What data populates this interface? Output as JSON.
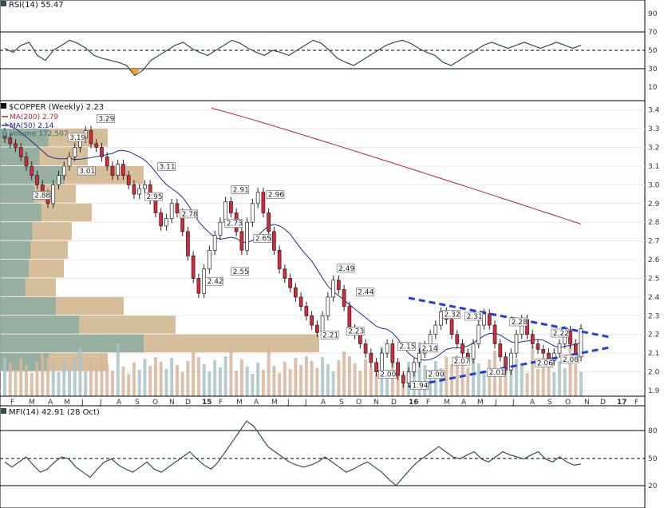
{
  "rsi": {
    "title": "RSI(14) 55.47",
    "levels": [
      "90",
      "70",
      "50",
      "30",
      "10"
    ],
    "color": "#2f4f4f"
  },
  "price": {
    "title": "$COPPER (Weekly) 2.23",
    "ma200": {
      "label": "MA(200) 2.79",
      "color": "#b22234"
    },
    "ma50": {
      "label": "MA(50) 2.14",
      "color": "#1f2a8c"
    },
    "volume": {
      "label": "Volume 172,507",
      "color": "#5f9ea0"
    },
    "yticks": [
      "3.4",
      "3.3",
      "3.2",
      "3.1",
      "3.0",
      "2.9",
      "2.8",
      "2.7",
      "2.6",
      "2.5",
      "2.4",
      "2.3",
      "2.2",
      "2.1",
      "2.0",
      "1.9"
    ],
    "annotations": [
      "3.29",
      "3.19",
      "3.11",
      "3.01",
      "2.88",
      "2.95",
      "2.78",
      "2.91",
      "2.96",
      "2.73",
      "2.65",
      "2.55",
      "2.42",
      "2.49",
      "2.44",
      "2.21",
      "2.23",
      "2.15",
      "2.14",
      "2.00",
      "1.94",
      "2.00",
      "2.32",
      "2.31",
      "2.07",
      "2.28",
      "2.01",
      "2.22",
      "2.06",
      "2.08"
    ]
  },
  "xaxis": [
    "F",
    "M",
    "A",
    "M",
    "J",
    "J",
    "A",
    "S",
    "O",
    "N",
    "D",
    "15",
    "F",
    "M",
    "A",
    "M",
    "J",
    "J",
    "A",
    "S",
    "O",
    "N",
    "D",
    "16",
    "F",
    "M",
    "A",
    "M",
    "J",
    "J",
    "A",
    "S",
    "O",
    "N",
    "D",
    "17",
    "F"
  ],
  "mfi": {
    "title": "MFI(14) 42.91 (28 Oct)",
    "levels": [
      "80",
      "50",
      "20"
    ]
  },
  "chart_data": [
    {
      "type": "line",
      "title": "RSI(14) 55.47",
      "ylim": [
        0,
        100
      ],
      "yticks": [
        90,
        70,
        50,
        30,
        10
      ],
      "series": [
        {
          "name": "RSI(14)",
          "values": [
            52,
            48,
            55,
            58,
            45,
            40,
            50,
            55,
            60,
            57,
            52,
            45,
            42,
            40,
            38,
            35,
            25,
            30,
            40,
            45,
            50,
            55,
            58,
            52,
            48,
            45,
            50,
            55,
            60,
            57,
            52,
            48,
            45,
            50,
            48,
            45,
            50,
            55,
            60,
            57,
            50,
            42,
            38,
            35,
            40,
            45,
            50,
            55,
            58,
            60,
            57,
            52,
            48,
            45,
            38,
            35,
            40,
            45,
            50,
            55,
            58,
            55,
            52,
            55,
            58,
            55,
            52,
            55,
            58,
            55,
            52,
            55
          ]
        }
      ]
    },
    {
      "type": "candlestick",
      "title": "$COPPER (Weekly) 2.23",
      "ylim": [
        1.9,
        3.45
      ],
      "yticks": [
        3.4,
        3.3,
        3.2,
        3.1,
        3.0,
        2.9,
        2.8,
        2.7,
        2.6,
        2.5,
        2.4,
        2.3,
        2.2,
        2.1,
        2.0,
        1.9
      ],
      "close": [
        3.25,
        3.22,
        3.2,
        3.15,
        3.1,
        3.05,
        3.0,
        2.95,
        2.9,
        3.0,
        3.05,
        3.1,
        3.15,
        3.2,
        3.25,
        3.29,
        3.22,
        3.2,
        3.15,
        3.1,
        3.05,
        3.11,
        3.05,
        3.0,
        2.95,
        2.98,
        3.0,
        2.92,
        2.85,
        2.78,
        2.82,
        2.9,
        2.85,
        2.75,
        2.62,
        2.5,
        2.42,
        2.55,
        2.65,
        2.73,
        2.8,
        2.91,
        2.85,
        2.75,
        2.65,
        2.8,
        2.9,
        2.96,
        2.85,
        2.75,
        2.65,
        2.55,
        2.5,
        2.45,
        2.4,
        2.35,
        2.3,
        2.25,
        2.21,
        2.3,
        2.4,
        2.49,
        2.44,
        2.35,
        2.23,
        2.2,
        2.15,
        2.1,
        2.05,
        2.0,
        2.1,
        2.15,
        2.05,
        1.98,
        1.94,
        2.0,
        2.05,
        2.1,
        2.14,
        2.2,
        2.25,
        2.32,
        2.28,
        2.2,
        2.15,
        2.1,
        2.07,
        2.15,
        2.25,
        2.31,
        2.25,
        2.15,
        2.08,
        2.01,
        2.1,
        2.2,
        2.28,
        2.2,
        2.15,
        2.12,
        2.1,
        2.06,
        2.1,
        2.15,
        2.22,
        2.15,
        2.08,
        2.23
      ],
      "series": [
        {
          "name": "MA(200) 2.79",
          "color": "#b22234"
        },
        {
          "name": "MA(50) 2.14",
          "color": "#1f2a8c"
        },
        {
          "name": "Volume 172,507",
          "color": "#5f9ea0"
        }
      ],
      "annotations": [
        {
          "x": 30,
          "label": "3.29"
        },
        {
          "x": 21,
          "label": "3.19"
        },
        {
          "x": 49,
          "label": "3.11"
        },
        {
          "x": 24,
          "label": "3.01"
        },
        {
          "x": 10,
          "label": "2.88"
        },
        {
          "x": 45,
          "label": "2.95"
        },
        {
          "x": 56,
          "label": "2.78"
        },
        {
          "x": 72,
          "label": "2.91"
        },
        {
          "x": 83,
          "label": "2.96"
        },
        {
          "x": 70,
          "label": "2.73"
        },
        {
          "x": 79,
          "label": "2.65"
        },
        {
          "x": 72,
          "label": "2.55"
        },
        {
          "x": 64,
          "label": "2.42"
        },
        {
          "x": 105,
          "label": "2.49"
        },
        {
          "x": 111,
          "label": "2.44"
        },
        {
          "x": 100,
          "label": "2.21"
        },
        {
          "x": 108,
          "label": "2.23"
        },
        {
          "x": 124,
          "label": "2.15"
        },
        {
          "x": 131,
          "label": "2.14"
        },
        {
          "x": 118,
          "label": "2.00"
        },
        {
          "x": 128,
          "label": "1.94"
        },
        {
          "x": 133,
          "label": "2.00"
        },
        {
          "x": 138,
          "label": "2.32"
        },
        {
          "x": 145,
          "label": "2.31"
        },
        {
          "x": 141,
          "label": "2.07"
        },
        {
          "x": 159,
          "label": "2.28"
        },
        {
          "x": 152,
          "label": "2.01"
        },
        {
          "x": 172,
          "label": "2.22"
        },
        {
          "x": 167,
          "label": "2.06"
        },
        {
          "x": 175,
          "label": "2.08"
        }
      ],
      "trendlines": [
        {
          "style": "dashed",
          "color": "#1f3fd6",
          "from": {
            "x": "16-Feb",
            "y": 2.39
          },
          "to": {
            "x": "16-Nov",
            "y": 2.17
          }
        },
        {
          "style": "dashed",
          "color": "#1f3fd6",
          "from": {
            "x": "16-Feb",
            "y": 1.92
          },
          "to": {
            "x": "16-Nov",
            "y": 2.11
          }
        }
      ]
    },
    {
      "type": "line",
      "title": "MFI(14) 42.91 (28 Oct)",
      "ylim": [
        0,
        100
      ],
      "yticks": [
        80,
        50,
        20
      ],
      "series": [
        {
          "name": "MFI(14)",
          "values": [
            45,
            40,
            45,
            50,
            42,
            35,
            38,
            45,
            50,
            48,
            40,
            35,
            30,
            38,
            45,
            48,
            42,
            38,
            35,
            40,
            45,
            38,
            35,
            40,
            45,
            50,
            55,
            48,
            42,
            38,
            45,
            55,
            65,
            75,
            85,
            80,
            70,
            60,
            55,
            50,
            45,
            42,
            40,
            42,
            45,
            50,
            45,
            40,
            35,
            38,
            42,
            45,
            40,
            35,
            28,
            22,
            30,
            38,
            45,
            50,
            55,
            60,
            55,
            50,
            48,
            52,
            55,
            48,
            45,
            50,
            55,
            52,
            50,
            48,
            52,
            55,
            48,
            45,
            50,
            45,
            42,
            43
          ]
        }
      ]
    }
  ]
}
